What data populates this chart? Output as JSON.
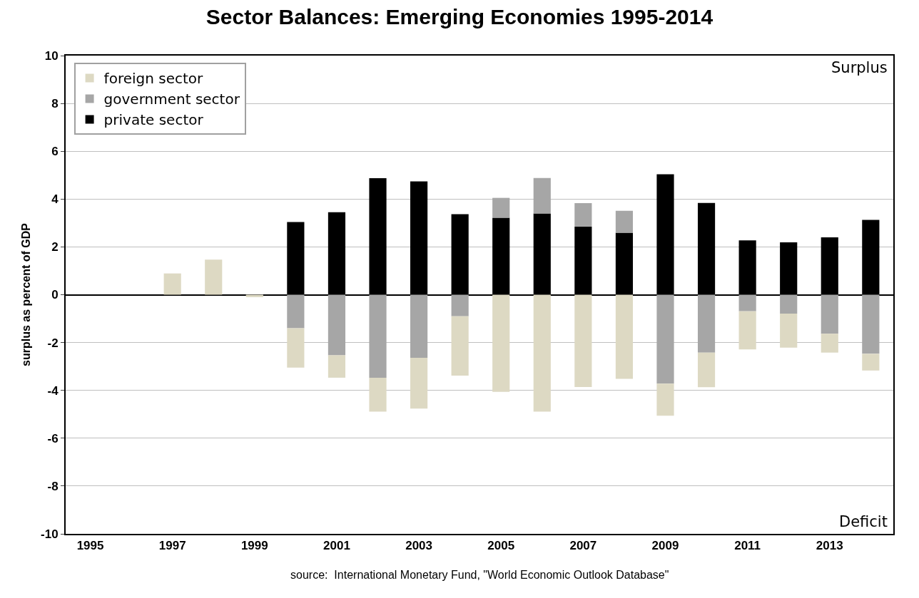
{
  "chart_data": {
    "type": "bar",
    "stacked": true,
    "title": "Sector Balances: Emerging Economies 1995-2014",
    "ylabel": "surplus as percent of GDP",
    "categories": [
      "1995",
      null,
      "1997",
      null,
      "1999",
      null,
      "2001",
      null,
      "2003",
      null,
      "2005",
      null,
      "2007",
      null,
      "2009",
      null,
      "2011",
      null,
      "2013",
      null
    ],
    "series": [
      {
        "name": "private sector",
        "color": "#000000",
        "values": [
          null,
          null,
          null,
          null,
          null,
          3.04,
          3.45,
          4.87,
          4.74,
          3.37,
          3.22,
          3.4,
          2.85,
          2.59,
          5.04,
          3.84,
          2.27,
          2.19,
          2.4,
          3.13
        ]
      },
      {
        "name": "government sector",
        "color": "#a6a6a6",
        "values": [
          null,
          null,
          null,
          null,
          null,
          -1.4,
          -2.53,
          -3.47,
          -2.64,
          -0.9,
          0.83,
          1.48,
          0.98,
          0.92,
          -3.72,
          -2.42,
          -0.69,
          -0.79,
          -1.63,
          -2.47
        ]
      },
      {
        "name": "foreign sector",
        "color": "#ddd9c3",
        "values": [
          null,
          null,
          0.89,
          1.47,
          -0.1,
          -1.65,
          -0.94,
          -1.42,
          -2.12,
          -2.48,
          -4.06,
          -4.89,
          -3.86,
          -3.52,
          -1.34,
          -1.45,
          -1.6,
          -1.42,
          -0.79,
          -0.7
        ]
      }
    ],
    "ylim": [
      -10,
      10
    ],
    "yticks": [
      -10,
      -8,
      -6,
      -4,
      -2,
      0,
      2,
      4,
      6,
      8,
      10
    ],
    "grid": "y",
    "legend": "top left",
    "annotations": [
      "Surplus",
      "Deficit",
      "source:  International Monetary Fund, \"World Economic Outlook Database\""
    ]
  }
}
